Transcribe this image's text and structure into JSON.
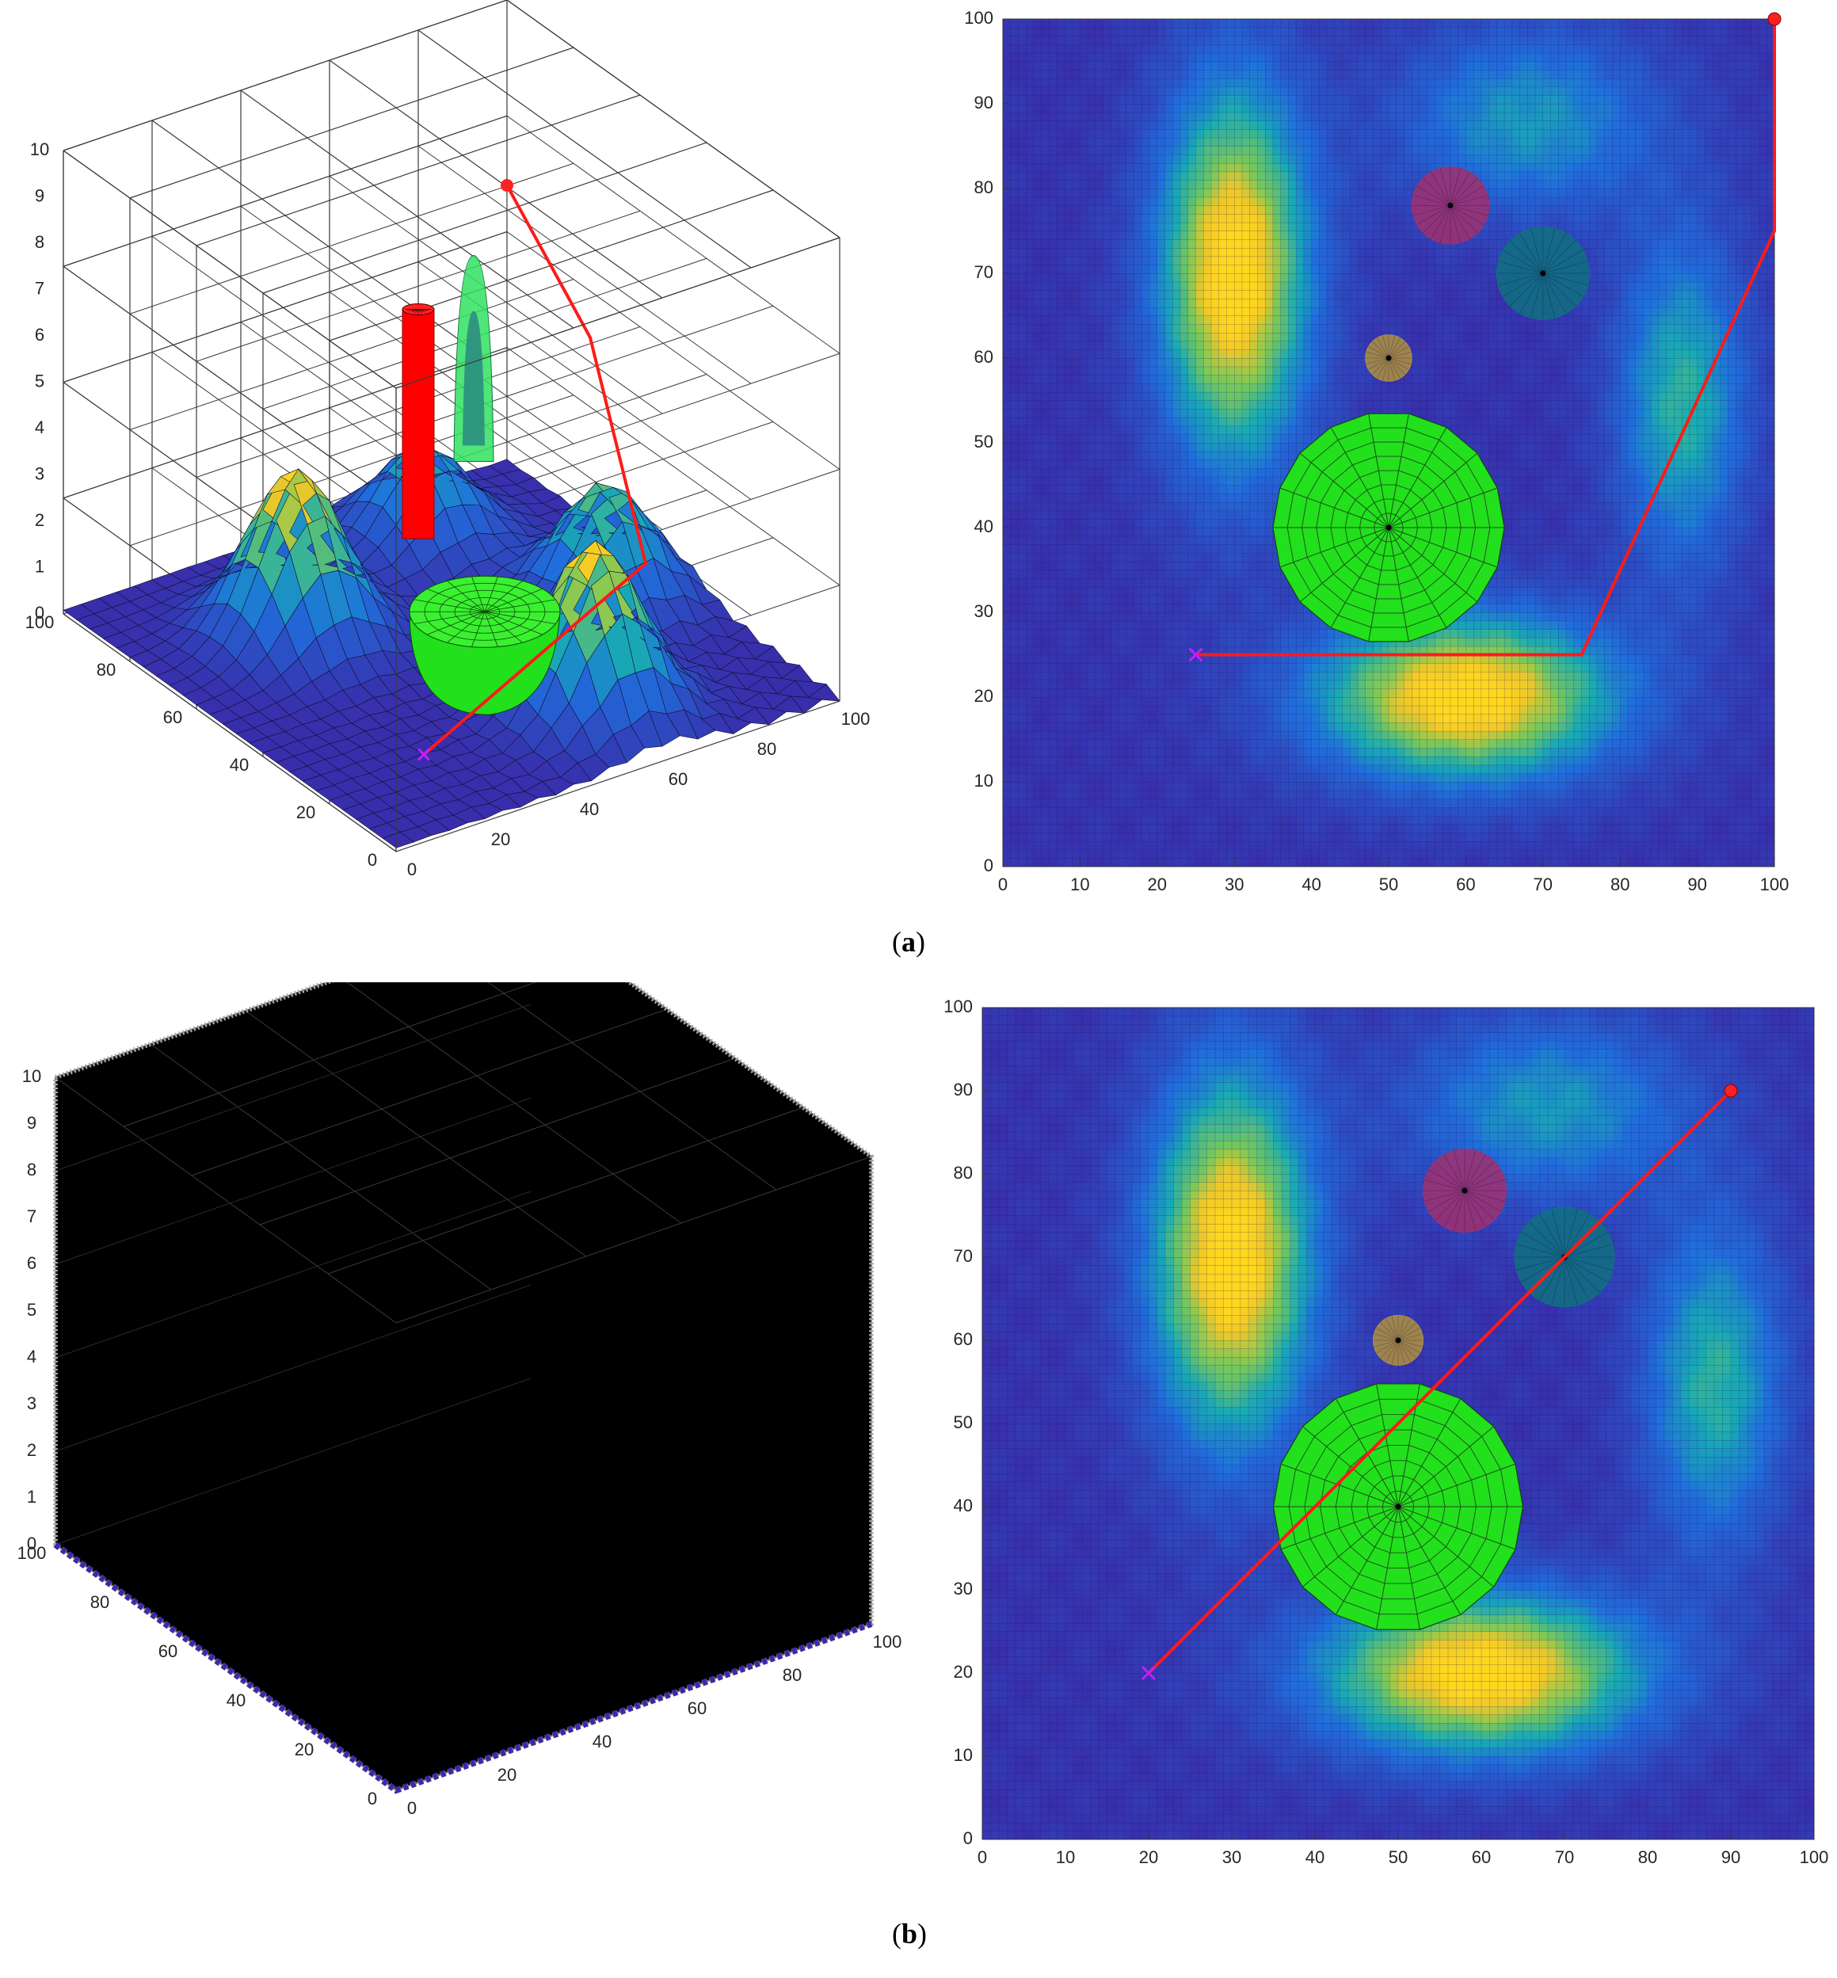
{
  "captions": {
    "a": {
      "open": "(",
      "letter": "a",
      "close": ")"
    },
    "b": {
      "open": "(",
      "letter": "b",
      "close": ")"
    }
  },
  "colors": {
    "path": "#ff1a1a",
    "bg_low": "#3a2aa8",
    "mid": "#1f8fd0",
    "high": "#ffd21a",
    "green": "#22e01c",
    "red_cyl": "#ff0000",
    "grid_3d": "#444444",
    "black_box": "#000000"
  },
  "chart_data": [
    {
      "id": "a-3d",
      "type": "surface3d",
      "x_ticks": [
        "0",
        "20",
        "40",
        "60",
        "80",
        "100"
      ],
      "y_ticks": [
        "0",
        "20",
        "40",
        "60",
        "80",
        "100"
      ],
      "z_ticks": [
        "0",
        "1",
        "2",
        "3",
        "4",
        "5",
        "6",
        "7",
        "8",
        "9",
        "10"
      ],
      "xlim": [
        0,
        100
      ],
      "ylim": [
        0,
        100
      ],
      "zlim": [
        0,
        10
      ],
      "peaks": [
        {
          "x": 30,
          "y": 70,
          "h": 3.6
        },
        {
          "x": 60,
          "y": 20,
          "h": 3.6
        },
        {
          "x": 85,
          "y": 50,
          "h": 2.5
        },
        {
          "x": 70,
          "y": 85,
          "h": 2.0
        }
      ],
      "obstacles": [
        {
          "kind": "cylinder",
          "x": 50,
          "y": 60,
          "r": 3,
          "h": 7,
          "color": "red"
        },
        {
          "kind": "cone",
          "x": 70,
          "y": 70,
          "r": 5,
          "h": 7,
          "color": "green"
        },
        {
          "kind": "dome",
          "x": 50,
          "y": 40,
          "r": 15,
          "h": 1.5,
          "color": "green"
        }
      ],
      "path": [
        {
          "x": 25,
          "y": 25,
          "z": 0
        },
        {
          "x": 75,
          "y": 25,
          "z": 2.5
        },
        {
          "x": 100,
          "y": 75,
          "z": 4
        },
        {
          "x": 100,
          "y": 100,
          "z": 6
        }
      ]
    },
    {
      "id": "a-2d",
      "type": "heatmap",
      "xlim": [
        0,
        100
      ],
      "ylim": [
        0,
        100
      ],
      "x_ticks": [
        "0",
        "10",
        "20",
        "30",
        "40",
        "50",
        "60",
        "70",
        "80",
        "90",
        "100"
      ],
      "y_ticks": [
        "0",
        "10",
        "20",
        "30",
        "40",
        "50",
        "60",
        "70",
        "80",
        "90",
        "100"
      ],
      "obstacles": [
        {
          "kind": "circle",
          "x": 58,
          "y": 78,
          "r": 5,
          "color": "#a03070"
        },
        {
          "kind": "circle",
          "x": 70,
          "y": 70,
          "r": 6,
          "color": "#107080"
        },
        {
          "kind": "circle",
          "x": 50,
          "y": 60,
          "r": 3,
          "color": "#b09040"
        },
        {
          "kind": "circle",
          "x": 50,
          "y": 40,
          "r": 15,
          "color": "#22e01c"
        }
      ],
      "path": [
        {
          "x": 25,
          "y": 25
        },
        {
          "x": 75,
          "y": 25
        },
        {
          "x": 100,
          "y": 75
        },
        {
          "x": 100,
          "y": 100
        }
      ],
      "start": {
        "x": 25,
        "y": 25
      },
      "goal": {
        "x": 100,
        "y": 100
      }
    },
    {
      "id": "b-3d",
      "type": "box3d",
      "x_ticks": [
        "0",
        "20",
        "40",
        "60",
        "80",
        "100"
      ],
      "y_ticks": [
        "0",
        "20",
        "40",
        "60",
        "80",
        "100"
      ],
      "z_ticks": [
        "0",
        "1",
        "2",
        "3",
        "4",
        "5",
        "6",
        "7",
        "8",
        "9",
        "10"
      ],
      "xlim": [
        0,
        100
      ],
      "ylim": [
        0,
        100
      ],
      "zlim": [
        0,
        10
      ]
    },
    {
      "id": "b-2d",
      "type": "heatmap",
      "xlim": [
        0,
        100
      ],
      "ylim": [
        0,
        100
      ],
      "x_ticks": [
        "0",
        "10",
        "20",
        "30",
        "40",
        "50",
        "60",
        "70",
        "80",
        "90",
        "100"
      ],
      "y_ticks": [
        "0",
        "10",
        "20",
        "30",
        "40",
        "50",
        "60",
        "70",
        "80",
        "90",
        "100"
      ],
      "obstacles": [
        {
          "kind": "circle",
          "x": 58,
          "y": 78,
          "r": 5,
          "color": "#a03070"
        },
        {
          "kind": "circle",
          "x": 70,
          "y": 70,
          "r": 6,
          "color": "#107080"
        },
        {
          "kind": "circle",
          "x": 50,
          "y": 60,
          "r": 3,
          "color": "#b09040"
        },
        {
          "kind": "circle",
          "x": 50,
          "y": 40,
          "r": 15,
          "color": "#22e01c"
        }
      ],
      "path": [
        {
          "x": 20,
          "y": 20
        },
        {
          "x": 90,
          "y": 90
        }
      ],
      "start": {
        "x": 20,
        "y": 20
      },
      "goal": {
        "x": 90,
        "y": 90
      }
    }
  ],
  "heat_blobs": [
    {
      "x": 30,
      "y": 70,
      "sx": 7,
      "sy": 16,
      "a": 1.0
    },
    {
      "x": 60,
      "y": 20,
      "sx": 14,
      "sy": 7,
      "a": 1.0
    },
    {
      "x": 88,
      "y": 55,
      "sx": 6,
      "sy": 14,
      "a": 0.55
    },
    {
      "x": 68,
      "y": 88,
      "sx": 12,
      "sy": 8,
      "a": 0.45
    }
  ]
}
